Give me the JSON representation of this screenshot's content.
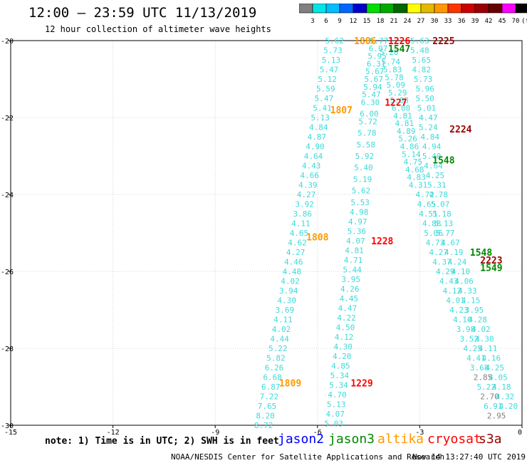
{
  "header": {
    "title": "12:00 – 23:59 UTC 11/13/2019",
    "subtitle": "12 hour collection of altimeter wave heights"
  },
  "colorbar": {
    "labels": [
      "3",
      "6",
      "9",
      "12",
      "15",
      "18",
      "21",
      "24",
      "27",
      "30",
      "33",
      "36",
      "39",
      "42",
      "45",
      "70",
      "(ft)"
    ],
    "colors": [
      "#808080",
      "#00e5e5",
      "#00bfff",
      "#0066ff",
      "#0000cc",
      "#00dd00",
      "#00aa00",
      "#006600",
      "#ffff00",
      "#e6b800",
      "#ff9900",
      "#ff3300",
      "#cc0000",
      "#990000",
      "#660000",
      "#ff00ff",
      "#000000"
    ]
  },
  "footer": {
    "note": "note: 1) Time is in UTC; 2) SWH is in feet",
    "legend": [
      {
        "label": "jason2",
        "color": "#0000ff"
      },
      {
        "label": "jason3",
        "color": "#008800"
      },
      {
        "label": "altika",
        "color": "#ff9900"
      },
      {
        "label": "cryosat",
        "color": "#ff0000"
      },
      {
        "label": "s3a",
        "color": "#990000"
      }
    ],
    "credit": "NOAA/NESDIS Center for Satellite Applications and Research",
    "timestamp": "Nov 14 13:27:40 UTC 2019"
  },
  "chart_data": {
    "type": "scatter",
    "xlim": [
      -15,
      0
    ],
    "ylim": [
      -30,
      -20
    ],
    "xticks": [
      -15,
      -12,
      -9,
      -6,
      -3,
      0
    ],
    "yticks": [
      -20,
      -22,
      -24,
      -26,
      -28,
      -30
    ],
    "grid": true,
    "colors": {
      "swh": "#3fd9d9",
      "swh_low": "#808080",
      "altika": "#ff9900",
      "cryosat": "#ff0000",
      "s3a": "#990000",
      "jason3": "#008800"
    },
    "time_labels": [
      {
        "text": "1806",
        "sat": "altika",
        "x": -4.6,
        "y": -20.0
      },
      {
        "text": "1807",
        "sat": "altika",
        "x": -5.3,
        "y": -21.8
      },
      {
        "text": "1808",
        "sat": "altika",
        "x": -6.0,
        "y": -25.1
      },
      {
        "text": "1809",
        "sat": "altika",
        "x": -6.8,
        "y": -28.9
      },
      {
        "text": "1226",
        "sat": "cryosat",
        "x": -3.6,
        "y": -20.0
      },
      {
        "text": "1227",
        "sat": "cryosat",
        "x": -3.7,
        "y": -21.6
      },
      {
        "text": "1228",
        "sat": "cryosat",
        "x": -4.1,
        "y": -25.2
      },
      {
        "text": "1229",
        "sat": "cryosat",
        "x": -4.7,
        "y": -28.9
      },
      {
        "text": "2225",
        "sat": "s3a",
        "x": -2.3,
        "y": -20.0
      },
      {
        "text": "2224",
        "sat": "s3a",
        "x": -1.8,
        "y": -22.3
      },
      {
        "text": "2223",
        "sat": "s3a",
        "x": -0.9,
        "y": -25.7
      },
      {
        "text": "1547",
        "sat": "jason3",
        "x": -3.6,
        "y": -20.2
      },
      {
        "text": "1548",
        "sat": "jason3",
        "x": -2.3,
        "y": -23.1
      },
      {
        "text": "1548",
        "sat": "jason3",
        "x": -1.2,
        "y": -25.5
      },
      {
        "text": "1549",
        "sat": "jason3",
        "x": -0.9,
        "y": -25.9
      }
    ],
    "tracks": [
      {
        "name": "altika",
        "points": [
          {
            "x": -5.5,
            "y": -20.0,
            "v": 5.62
          },
          {
            "x": -5.55,
            "y": -20.25,
            "v": 5.73
          },
          {
            "x": -5.6,
            "y": -20.5,
            "v": 5.13
          },
          {
            "x": -5.66,
            "y": -20.75,
            "v": 5.47
          },
          {
            "x": -5.71,
            "y": -21.0,
            "v": 5.12
          },
          {
            "x": -5.76,
            "y": -21.25,
            "v": 5.59
          },
          {
            "x": -5.81,
            "y": -21.5,
            "v": 5.47
          },
          {
            "x": -5.86,
            "y": -21.75,
            "v": 5.41
          },
          {
            "x": -5.92,
            "y": -22.0,
            "v": 5.13
          },
          {
            "x": -5.97,
            "y": -22.25,
            "v": 4.84
          },
          {
            "x": -6.02,
            "y": -22.5,
            "v": 4.87
          },
          {
            "x": -6.07,
            "y": -22.75,
            "v": 4.9
          },
          {
            "x": -6.12,
            "y": -23.0,
            "v": 4.64
          },
          {
            "x": -6.18,
            "y": -23.25,
            "v": 4.43
          },
          {
            "x": -6.23,
            "y": -23.5,
            "v": 4.66
          },
          {
            "x": -6.28,
            "y": -23.75,
            "v": 4.39
          },
          {
            "x": -6.33,
            "y": -24.0,
            "v": 4.27
          },
          {
            "x": -6.38,
            "y": -24.25,
            "v": 3.92
          },
          {
            "x": -6.44,
            "y": -24.5,
            "v": 3.86
          },
          {
            "x": -6.49,
            "y": -24.75,
            "v": 4.11
          },
          {
            "x": -6.54,
            "y": -25.0,
            "v": 4.65
          },
          {
            "x": -6.59,
            "y": -25.25,
            "v": 4.62
          },
          {
            "x": -6.64,
            "y": -25.5,
            "v": 4.27
          },
          {
            "x": -6.7,
            "y": -25.75,
            "v": 4.46
          },
          {
            "x": -6.75,
            "y": -26.0,
            "v": 4.48
          },
          {
            "x": -6.8,
            "y": -26.25,
            "v": 4.02
          },
          {
            "x": -6.85,
            "y": -26.5,
            "v": 3.94
          },
          {
            "x": -6.9,
            "y": -26.75,
            "v": 4.3
          },
          {
            "x": -6.96,
            "y": -27.0,
            "v": 3.69
          },
          {
            "x": -7.01,
            "y": -27.25,
            "v": 4.11
          },
          {
            "x": -7.06,
            "y": -27.5,
            "v": 4.02
          },
          {
            "x": -7.11,
            "y": -27.75,
            "v": 4.44
          },
          {
            "x": -7.16,
            "y": -28.0,
            "v": 5.22
          },
          {
            "x": -7.22,
            "y": -28.25,
            "v": 5.82
          },
          {
            "x": -7.27,
            "y": -28.5,
            "v": 6.26
          },
          {
            "x": -7.32,
            "y": -28.75,
            "v": 6.68
          },
          {
            "x": -7.37,
            "y": -29.0,
            "v": 6.87
          },
          {
            "x": -7.42,
            "y": -29.25,
            "v": 7.22
          },
          {
            "x": -7.48,
            "y": -29.5,
            "v": 7.65
          },
          {
            "x": -7.53,
            "y": -29.75,
            "v": 8.2
          },
          {
            "x": -7.58,
            "y": -30.0,
            "v": 8.72
          }
        ]
      },
      {
        "name": "cryosat",
        "points": [
          {
            "x": -4.2,
            "y": -20.0,
            "v": 5.77
          },
          {
            "x": -4.22,
            "y": -20.2,
            "v": 6.07
          },
          {
            "x": -4.25,
            "y": -20.4,
            "v": 5.95
          },
          {
            "x": -4.28,
            "y": -20.6,
            "v": 6.31
          },
          {
            "x": -4.32,
            "y": -20.8,
            "v": 5.67
          },
          {
            "x": -4.35,
            "y": -21.0,
            "v": 5.67
          },
          {
            "x": -4.38,
            "y": -21.2,
            "v": 5.94
          },
          {
            "x": -4.42,
            "y": -21.4,
            "v": 5.47
          },
          {
            "x": -4.45,
            "y": -21.6,
            "v": 6.3
          },
          {
            "x": -4.48,
            "y": -21.9,
            "v": 6.0
          },
          {
            "x": -4.52,
            "y": -22.1,
            "v": 5.72
          },
          {
            "x": -4.55,
            "y": -22.4,
            "v": 5.78
          },
          {
            "x": -4.58,
            "y": -22.7,
            "v": 5.58
          },
          {
            "x": -4.62,
            "y": -23.0,
            "v": 5.92
          },
          {
            "x": -4.65,
            "y": -23.3,
            "v": 5.4
          },
          {
            "x": -4.68,
            "y": -23.6,
            "v": 5.19
          },
          {
            "x": -4.72,
            "y": -23.9,
            "v": 5.62
          },
          {
            "x": -4.75,
            "y": -24.2,
            "v": 5.53
          },
          {
            "x": -4.78,
            "y": -24.45,
            "v": 4.98
          },
          {
            "x": -4.82,
            "y": -24.7,
            "v": 4.97
          },
          {
            "x": -4.85,
            "y": -24.95,
            "v": 5.36
          },
          {
            "x": -4.88,
            "y": -25.2,
            "v": 4.07
          },
          {
            "x": -4.92,
            "y": -25.45,
            "v": 4.81
          },
          {
            "x": -4.95,
            "y": -25.7,
            "v": 4.71
          },
          {
            "x": -4.98,
            "y": -25.95,
            "v": 5.44
          },
          {
            "x": -5.02,
            "y": -26.2,
            "v": 3.95
          },
          {
            "x": -5.05,
            "y": -26.45,
            "v": 4.26
          },
          {
            "x": -5.08,
            "y": -26.7,
            "v": 4.45
          },
          {
            "x": -5.12,
            "y": -26.95,
            "v": 4.47
          },
          {
            "x": -5.15,
            "y": -27.2,
            "v": 4.22
          },
          {
            "x": -5.18,
            "y": -27.45,
            "v": 4.5
          },
          {
            "x": -5.22,
            "y": -27.7,
            "v": 4.12
          },
          {
            "x": -5.25,
            "y": -27.95,
            "v": 4.3
          },
          {
            "x": -5.28,
            "y": -28.2,
            "v": 4.2
          },
          {
            "x": -5.32,
            "y": -28.45,
            "v": 4.85
          },
          {
            "x": -5.35,
            "y": -28.7,
            "v": 5.34
          },
          {
            "x": -5.38,
            "y": -28.95,
            "v": 5.34
          },
          {
            "x": -5.42,
            "y": -29.2,
            "v": 4.7
          },
          {
            "x": -5.45,
            "y": -29.45,
            "v": 5.13
          },
          {
            "x": -5.48,
            "y": -29.7,
            "v": 4.07
          },
          {
            "x": -5.52,
            "y": -29.95,
            "v": 5.03
          }
        ]
      },
      {
        "name": "s3a",
        "points": [
          {
            "x": -3.9,
            "y": -20.3,
            "v": 5.28
          },
          {
            "x": -3.85,
            "y": -20.55,
            "v": 5.74
          },
          {
            "x": -3.8,
            "y": -20.75,
            "v": 5.83
          },
          {
            "x": -3.75,
            "y": -20.95,
            "v": 5.78
          },
          {
            "x": -3.7,
            "y": -21.15,
            "v": 5.09
          },
          {
            "x": -3.65,
            "y": -21.35,
            "v": 5.29
          },
          {
            "x": -3.6,
            "y": -21.55,
            "v": 5.88
          },
          {
            "x": -3.55,
            "y": -21.75,
            "v": 6.08
          },
          {
            "x": -3.5,
            "y": -21.95,
            "v": 4.81
          },
          {
            "x": -3.45,
            "y": -22.15,
            "v": 4.81
          },
          {
            "x": -3.4,
            "y": -22.35,
            "v": 4.89
          },
          {
            "x": -3.35,
            "y": -22.55,
            "v": 5.26
          },
          {
            "x": -3.3,
            "y": -22.75,
            "v": 4.86
          },
          {
            "x": -3.25,
            "y": -22.95,
            "v": 5.14
          },
          {
            "x": -3.2,
            "y": -23.15,
            "v": 4.75
          },
          {
            "x": -3.15,
            "y": -23.35,
            "v": 4.68
          },
          {
            "x": -3.1,
            "y": -23.55,
            "v": 4.83
          },
          {
            "x": -3.05,
            "y": -23.75,
            "v": 4.31
          },
          {
            "x": -2.85,
            "y": -24.0,
            "v": 4.72
          },
          {
            "x": -2.8,
            "y": -24.25,
            "v": 4.65
          },
          {
            "x": -2.75,
            "y": -24.5,
            "v": 4.51
          },
          {
            "x": -2.65,
            "y": -24.75,
            "v": 4.88
          },
          {
            "x": -2.6,
            "y": -25.0,
            "v": 5.06
          },
          {
            "x": -2.55,
            "y": -25.25,
            "v": 4.73
          },
          {
            "x": -2.45,
            "y": -25.5,
            "v": 4.27
          },
          {
            "x": -2.35,
            "y": -25.75,
            "v": 4.37
          },
          {
            "x": -2.25,
            "y": -26.0,
            "v": 4.29
          },
          {
            "x": -2.15,
            "y": -26.25,
            "v": 4.43
          },
          {
            "x": -2.05,
            "y": -26.5,
            "v": 4.12
          },
          {
            "x": -1.95,
            "y": -26.75,
            "v": 4.01
          },
          {
            "x": -1.85,
            "y": -27.0,
            "v": 4.23
          },
          {
            "x": -1.75,
            "y": -27.25,
            "v": 4.1
          },
          {
            "x": -1.65,
            "y": -27.5,
            "v": 3.98
          },
          {
            "x": -1.55,
            "y": -27.75,
            "v": 3.52
          },
          {
            "x": -1.45,
            "y": -28.0,
            "v": 4.25
          },
          {
            "x": -1.35,
            "y": -28.25,
            "v": 4.41
          },
          {
            "x": -1.25,
            "y": -28.5,
            "v": 3.68
          },
          {
            "x": -1.15,
            "y": -28.75,
            "v": 2.85
          },
          {
            "x": -1.05,
            "y": -29.0,
            "v": 5.22
          },
          {
            "x": -0.95,
            "y": -29.25,
            "v": 2.7
          },
          {
            "x": -0.85,
            "y": -29.5,
            "v": 6.91
          },
          {
            "x": -0.75,
            "y": -29.75,
            "v": 2.95
          }
        ]
      },
      {
        "name": "jason3",
        "points": [
          {
            "x": -3.0,
            "y": -20.0,
            "v": 5.63
          },
          {
            "x": -3.0,
            "y": -20.25,
            "v": 5.48
          },
          {
            "x": -2.95,
            "y": -20.5,
            "v": 5.65
          },
          {
            "x": -2.95,
            "y": -20.75,
            "v": 4.82
          },
          {
            "x": -2.9,
            "y": -21.0,
            "v": 5.73
          },
          {
            "x": -2.85,
            "y": -21.25,
            "v": 5.96
          },
          {
            "x": -2.85,
            "y": -21.5,
            "v": 5.5
          },
          {
            "x": -2.8,
            "y": -21.75,
            "v": 5.01
          },
          {
            "x": -2.75,
            "y": -22.0,
            "v": 4.47
          },
          {
            "x": -2.75,
            "y": -22.25,
            "v": 5.24
          },
          {
            "x": -2.7,
            "y": -22.5,
            "v": 4.84
          },
          {
            "x": -2.65,
            "y": -22.75,
            "v": 4.94
          },
          {
            "x": -2.65,
            "y": -23.0,
            "v": 5.4
          },
          {
            "x": -2.6,
            "y": -23.25,
            "v": 4.64
          },
          {
            "x": -2.55,
            "y": -23.5,
            "v": 4.25
          },
          {
            "x": -2.5,
            "y": -23.75,
            "v": 5.31
          },
          {
            "x": -2.45,
            "y": -24.0,
            "v": 4.78
          },
          {
            "x": -2.4,
            "y": -24.25,
            "v": 5.07
          },
          {
            "x": -2.35,
            "y": -24.5,
            "v": 5.18
          },
          {
            "x": -2.3,
            "y": -24.75,
            "v": 5.13
          },
          {
            "x": -2.25,
            "y": -25.0,
            "v": 5.77
          },
          {
            "x": -2.1,
            "y": -25.25,
            "v": 4.67
          },
          {
            "x": -2.0,
            "y": -25.5,
            "v": 4.19
          },
          {
            "x": -1.9,
            "y": -25.75,
            "v": 4.24
          },
          {
            "x": -1.8,
            "y": -26.0,
            "v": 4.1
          },
          {
            "x": -1.7,
            "y": -26.25,
            "v": 4.06
          },
          {
            "x": -1.6,
            "y": -26.5,
            "v": 4.33
          },
          {
            "x": -1.5,
            "y": -26.75,
            "v": 4.15
          },
          {
            "x": -1.4,
            "y": -27.0,
            "v": 3.95
          },
          {
            "x": -1.3,
            "y": -27.25,
            "v": 4.28
          },
          {
            "x": -1.2,
            "y": -27.5,
            "v": 4.02
          },
          {
            "x": -1.1,
            "y": -27.75,
            "v": 4.3
          },
          {
            "x": -1.0,
            "y": -28.0,
            "v": 4.11
          },
          {
            "x": -0.9,
            "y": -28.25,
            "v": 4.16
          },
          {
            "x": -0.8,
            "y": -28.5,
            "v": 4.25
          },
          {
            "x": -0.7,
            "y": -28.75,
            "v": 4.05
          },
          {
            "x": -0.6,
            "y": -29.0,
            "v": 4.18
          },
          {
            "x": -0.5,
            "y": -29.25,
            "v": 4.32
          },
          {
            "x": -0.4,
            "y": -29.5,
            "v": 4.2
          }
        ]
      }
    ]
  }
}
